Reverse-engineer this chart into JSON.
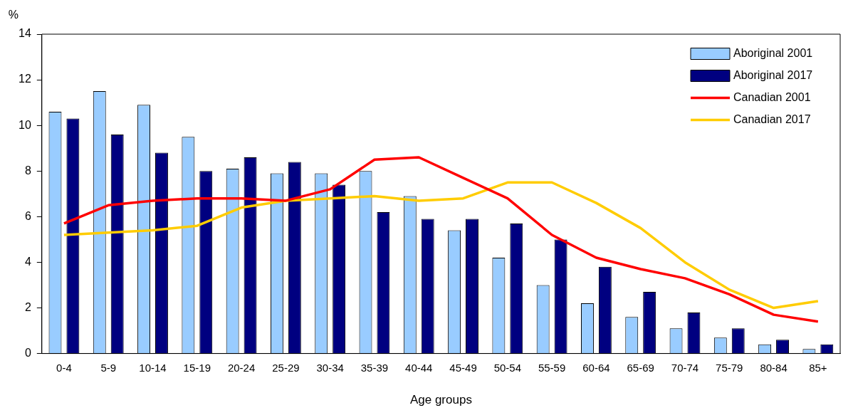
{
  "chart_data": {
    "type": "bar",
    "ylabel": "%",
    "xlabel": "Age groups",
    "categories": [
      "0-4",
      "5-9",
      "10-14",
      "15-19",
      "20-24",
      "25-29",
      "30-34",
      "35-39",
      "40-44",
      "45-49",
      "50-54",
      "55-59",
      "60-64",
      "65-69",
      "70-74",
      "75-79",
      "80-84",
      "85+"
    ],
    "series": [
      {
        "name": "Aboriginal 2001",
        "color": "#99ccff",
        "values": [
          10.6,
          11.5,
          10.9,
          9.5,
          8.1,
          7.9,
          7.9,
          8.0,
          6.9,
          5.4,
          4.2,
          3.0,
          2.2,
          1.6,
          1.1,
          0.7,
          0.4,
          0.2
        ]
      },
      {
        "name": "Aboriginal 2017",
        "color": "#000080",
        "values": [
          10.3,
          9.6,
          8.8,
          8.0,
          8.6,
          8.4,
          7.4,
          6.2,
          5.9,
          5.9,
          5.7,
          5.0,
          3.8,
          2.7,
          1.8,
          1.1,
          0.6,
          0.4
        ]
      },
      {
        "name": "Canadian 2001",
        "type": "line",
        "color": "#ff0000",
        "values": [
          5.7,
          6.5,
          6.7,
          6.8,
          6.8,
          6.7,
          7.2,
          8.5,
          8.6,
          7.7,
          6.8,
          5.2,
          4.2,
          3.7,
          3.3,
          2.6,
          1.7,
          1.4
        ]
      },
      {
        "name": "Canadian 2017",
        "type": "line",
        "color": "#ffcc00",
        "values": [
          5.2,
          5.3,
          5.4,
          5.6,
          6.4,
          6.7,
          6.8,
          6.9,
          6.7,
          6.8,
          7.5,
          7.5,
          6.6,
          5.5,
          4.0,
          2.8,
          2.0,
          2.3
        ]
      }
    ],
    "ylim": [
      0,
      14
    ],
    "yticks": [
      0,
      2,
      4,
      6,
      8,
      10,
      12,
      14
    ],
    "grid": false,
    "legend": "top right",
    "marker": "none"
  }
}
